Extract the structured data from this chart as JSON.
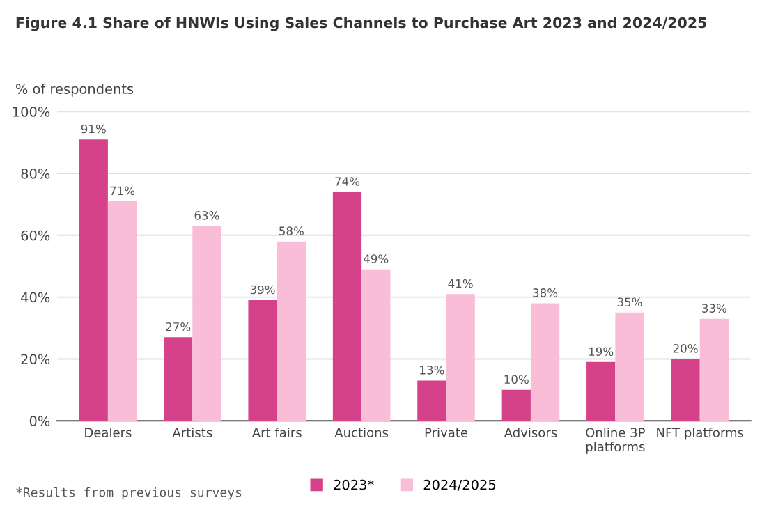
{
  "chart_data": {
    "type": "bar",
    "title": "Figure 4.1 Share of HNWIs Using Sales Channels to Purchase Art 2023 and 2024/2025",
    "ylabel": "% of respondents",
    "categories": [
      "Dealers",
      "Artists",
      "Art fairs",
      "Auctions",
      "Private",
      "Advisors",
      "Online 3P\nplatforms",
      "NFT platforms"
    ],
    "series": [
      {
        "name": "2023*",
        "color": "#d6428a",
        "values": [
          91,
          27,
          39,
          74,
          13,
          10,
          19,
          20
        ],
        "value_labels": [
          "91%",
          "27%",
          "39%",
          "74%",
          "13%",
          "10%",
          "19%",
          "20%"
        ]
      },
      {
        "name": "2024/2025",
        "color": "#f9bdd7",
        "values": [
          71,
          63,
          58,
          49,
          41,
          38,
          35,
          33
        ],
        "value_labels": [
          "71%",
          "63%",
          "58%",
          "49%",
          "41%",
          "38%",
          "35%",
          "33%"
        ]
      }
    ],
    "ylim": [
      0,
      100
    ],
    "yticks": [
      {
        "value": 0,
        "label": "0%"
      },
      {
        "value": 20,
        "label": "20%"
      },
      {
        "value": 40,
        "label": "40%"
      },
      {
        "value": 60,
        "label": "60%"
      },
      {
        "value": 80,
        "label": "80%"
      },
      {
        "value": 100,
        "label": "100%"
      }
    ],
    "grid": "y",
    "legend": "bottom",
    "annotations": [
      "*Results from previous surveys"
    ]
  }
}
